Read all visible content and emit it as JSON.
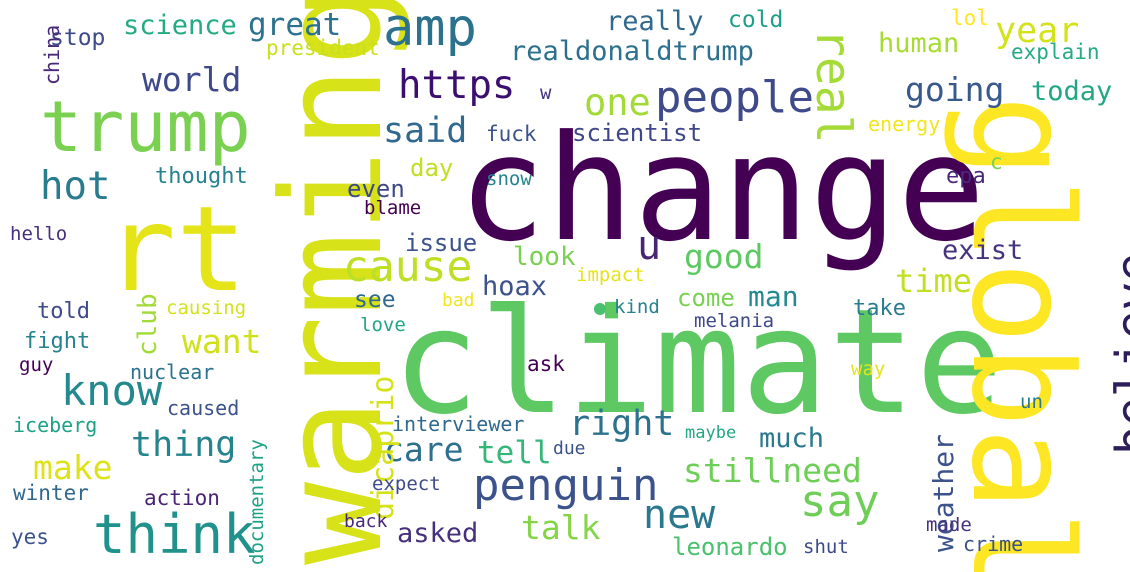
{
  "palette": {
    "dark_purple": "#3b0f70",
    "indigo": "#46327e",
    "slate_blue": "#365c8d",
    "steel_blue": "#277f8e",
    "teal": "#1fa187",
    "green": "#4ac16d",
    "light_green": "#a0da39",
    "yellow_green": "#c8e020",
    "yellow": "#fde725"
  },
  "words": [
    {
      "text": "change",
      "color": "#440154",
      "rotate": 0
    },
    {
      "text": "climate",
      "color": "#5ec962",
      "rotate": 0
    },
    {
      "text": "warming",
      "color": "#d8e219",
      "rotate": -90
    },
    {
      "text": "rt",
      "color": "#e5e419",
      "rotate": 0
    },
    {
      "text": "global",
      "color": "#fde725",
      "rotate": 90
    },
    {
      "text": "trump",
      "color": "#7ad151",
      "rotate": 0
    },
    {
      "text": "amp",
      "color": "#2c728e",
      "rotate": 0
    },
    {
      "text": "people",
      "color": "#3e4a89",
      "rotate": 0
    },
    {
      "text": "think",
      "color": "#21918c",
      "rotate": 0
    },
    {
      "text": "penguin",
      "color": "#3b528b",
      "rotate": 0
    },
    {
      "text": "believe",
      "color": "#2d1e5b",
      "rotate": -90
    },
    {
      "text": "real",
      "color": "#a5db36",
      "rotate": 90
    },
    {
      "text": "know",
      "color": "#23898e",
      "rotate": 0
    },
    {
      "text": "cause",
      "color": "#bddf26",
      "rotate": 0
    },
    {
      "text": "say",
      "color": "#6ece58",
      "rotate": 0
    },
    {
      "text": "new",
      "color": "#2a788e",
      "rotate": 0
    },
    {
      "text": "https",
      "color": "#3b0f70",
      "rotate": 0
    },
    {
      "text": "hot",
      "color": "#297b8e",
      "rotate": 0
    },
    {
      "text": "one",
      "color": "#a2da37",
      "rotate": 0
    },
    {
      "text": "u",
      "color": "#482475",
      "rotate": 0
    },
    {
      "text": "said",
      "color": "#31688e",
      "rotate": 0
    },
    {
      "text": "world",
      "color": "#3e4989",
      "rotate": 0
    },
    {
      "text": "thing",
      "color": "#25848e",
      "rotate": 0
    },
    {
      "text": "right",
      "color": "#2c728e",
      "rotate": 0
    },
    {
      "text": "year",
      "color": "#d2e21b",
      "rotate": 0
    },
    {
      "text": "going",
      "color": "#38598c",
      "rotate": 0
    },
    {
      "text": "good",
      "color": "#5ec962",
      "rotate": 0
    },
    {
      "text": "want",
      "color": "#d0e11c",
      "rotate": 0
    },
    {
      "text": "time",
      "color": "#c2df23",
      "rotate": 0
    },
    {
      "text": "make",
      "color": "#dde318",
      "rotate": 0
    },
    {
      "text": "talk",
      "color": "#86d549",
      "rotate": 0
    },
    {
      "text": "stillneed",
      "color": "#6ece58",
      "rotate": 0
    },
    {
      "text": "care",
      "color": "#2e6f8e",
      "rotate": 0
    },
    {
      "text": "tell",
      "color": "#35b779",
      "rotate": 0
    },
    {
      "text": "dicaprio",
      "color": "#d5e21a",
      "rotate": -90
    },
    {
      "text": "weather",
      "color": "#3b528b",
      "rotate": -90
    },
    {
      "text": "great",
      "color": "#2c728e",
      "rotate": 0
    },
    {
      "text": "science",
      "color": "#25ab82",
      "rotate": 0
    },
    {
      "text": "realdonaldtrump",
      "color": "#2d708e",
      "rotate": 0
    },
    {
      "text": "really",
      "color": "#31688e",
      "rotate": 0
    },
    {
      "text": "human",
      "color": "#a8db34",
      "rotate": 0
    },
    {
      "text": "today",
      "color": "#22a785",
      "rotate": 0
    },
    {
      "text": "man",
      "color": "#23898e",
      "rotate": 0
    },
    {
      "text": "club",
      "color": "#a2da37",
      "rotate": -90
    },
    {
      "text": "look",
      "color": "#7ad151",
      "rotate": 0
    },
    {
      "text": "much",
      "color": "#2a788e",
      "rotate": 0
    },
    {
      "text": "asked",
      "color": "#46307e",
      "rotate": 0
    },
    {
      "text": "leonardo",
      "color": "#4ac16d",
      "rotate": 0
    },
    {
      "text": "exist",
      "color": "#46337f",
      "rotate": 0
    },
    {
      "text": "hoax",
      "color": "#3b528b",
      "rotate": 0
    },
    {
      "text": "stop",
      "color": "#3e4a89",
      "rotate": 0
    },
    {
      "text": "cold",
      "color": "#1f9e89",
      "rotate": 0
    },
    {
      "text": "issue",
      "color": "#3b528b",
      "rotate": 0
    },
    {
      "text": "scientist",
      "color": "#3f4788",
      "rotate": 0
    },
    {
      "text": "day",
      "color": "#c2df23",
      "rotate": 0
    },
    {
      "text": "even",
      "color": "#3e4989",
      "rotate": 0
    },
    {
      "text": "come",
      "color": "#7ad151",
      "rotate": 0
    },
    {
      "text": "see",
      "color": "#31688e",
      "rotate": 0
    },
    {
      "text": "thought",
      "color": "#26828e",
      "rotate": 0
    },
    {
      "text": "explain",
      "color": "#25ab82",
      "rotate": 0
    },
    {
      "text": "president",
      "color": "#c8e020",
      "rotate": 0
    },
    {
      "text": "lol",
      "color": "#fde725",
      "rotate": 0
    },
    {
      "text": "energy",
      "color": "#f1e51d",
      "rotate": 0
    },
    {
      "text": "fuck",
      "color": "#3b528b",
      "rotate": 0
    },
    {
      "text": "epa",
      "color": "#482878",
      "rotate": 0
    },
    {
      "text": "c",
      "color": "#7ad151",
      "rotate": 0
    },
    {
      "text": "china",
      "color": "#482878",
      "rotate": -90
    },
    {
      "text": "w",
      "color": "#46327e",
      "rotate": 0
    },
    {
      "text": "snow",
      "color": "#25848e",
      "rotate": 0
    },
    {
      "text": "blame",
      "color": "#440154",
      "rotate": 0
    },
    {
      "text": "hello",
      "color": "#46307e",
      "rotate": 0
    },
    {
      "text": "impact",
      "color": "#e5e419",
      "rotate": 0
    },
    {
      "text": "bad",
      "color": "#f1e51d",
      "rotate": 0
    },
    {
      "text": "kind",
      "color": "#26828e",
      "rotate": 0
    },
    {
      "text": "take",
      "color": "#287c8e",
      "rotate": 0
    },
    {
      "text": "told",
      "color": "#3e4a89",
      "rotate": 0
    },
    {
      "text": "causing",
      "color": "#d2e21b",
      "rotate": 0
    },
    {
      "text": "fight",
      "color": "#26828e",
      "rotate": 0
    },
    {
      "text": "love",
      "color": "#22a785",
      "rotate": 0
    },
    {
      "text": "melania",
      "color": "#3e4989",
      "rotate": 0
    },
    {
      "text": "guy",
      "color": "#440154",
      "rotate": 0
    },
    {
      "text": "nuclear",
      "color": "#2c728e",
      "rotate": 0
    },
    {
      "text": "ask",
      "color": "#440154",
      "rotate": 0
    },
    {
      "text": "way",
      "color": "#e5e419",
      "rotate": 0
    },
    {
      "text": "caused",
      "color": "#3b528b",
      "rotate": 0
    },
    {
      "text": "iceberg",
      "color": "#1fa187",
      "rotate": 0
    },
    {
      "text": "interviewer",
      "color": "#31688e",
      "rotate": 0
    },
    {
      "text": "un",
      "color": "#2a788e",
      "rotate": 0
    },
    {
      "text": "maybe",
      "color": "#22a785",
      "rotate": 0
    },
    {
      "text": "due",
      "color": "#3b528b",
      "rotate": 0
    },
    {
      "text": "documentary",
      "color": "#1fa187",
      "rotate": -90
    },
    {
      "text": "winter",
      "color": "#31688e",
      "rotate": 0
    },
    {
      "text": "action",
      "color": "#482475",
      "rotate": 0
    },
    {
      "text": "expect",
      "color": "#3e4a89",
      "rotate": 0
    },
    {
      "text": "back",
      "color": "#482878",
      "rotate": 0
    },
    {
      "text": "shut",
      "color": "#3e4989",
      "rotate": 0
    },
    {
      "text": "made",
      "color": "#46327e",
      "rotate": 0
    },
    {
      "text": "crime",
      "color": "#3b528b",
      "rotate": 0
    },
    {
      "text": "yes",
      "color": "#3b528b",
      "rotate": 0
    }
  ]
}
